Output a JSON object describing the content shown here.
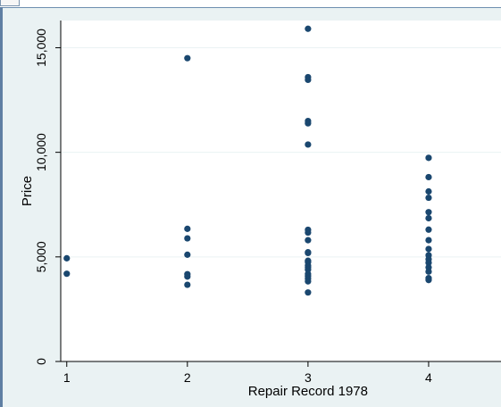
{
  "colors": {
    "outer_background": "#eaf2f3",
    "plot_background": "#ffffff",
    "marker": "#1a476f",
    "grid": "#eaf2f3",
    "axis": "#000000"
  },
  "chart_data": {
    "type": "scatter",
    "title": "",
    "xlabel": "Repair Record 1978",
    "ylabel": "Price",
    "xlim": [
      0.95,
      4.6
    ],
    "ylim": [
      0,
      16300
    ],
    "xticks": [
      1,
      2,
      3,
      4
    ],
    "xtick_labels": [
      "1",
      "2",
      "3",
      "4"
    ],
    "yticks": [
      0,
      5000,
      10000,
      15000
    ],
    "ytick_labels": [
      "0",
      "5,000",
      "10,000",
      "15,000"
    ],
    "grid": true,
    "legend": "none",
    "series": [
      {
        "points": [
          [
            1,
            4934
          ],
          [
            1,
            4195
          ],
          [
            2,
            14500
          ],
          [
            2,
            6342
          ],
          [
            2,
            5886
          ],
          [
            2,
            5104
          ],
          [
            2,
            4172
          ],
          [
            2,
            4060
          ],
          [
            2,
            3667
          ],
          [
            3,
            15906
          ],
          [
            3,
            13594
          ],
          [
            3,
            13466
          ],
          [
            3,
            11497
          ],
          [
            3,
            11385
          ],
          [
            3,
            10372
          ],
          [
            3,
            6295
          ],
          [
            3,
            6165
          ],
          [
            3,
            5798
          ],
          [
            3,
            5222
          ],
          [
            3,
            5189
          ],
          [
            3,
            4816
          ],
          [
            3,
            4749
          ],
          [
            3,
            4589
          ],
          [
            3,
            4504
          ],
          [
            3,
            4389
          ],
          [
            3,
            4187
          ],
          [
            3,
            4082
          ],
          [
            3,
            3955
          ],
          [
            3,
            3829
          ],
          [
            3,
            3299
          ],
          [
            4,
            9735
          ],
          [
            4,
            8814
          ],
          [
            4,
            8129
          ],
          [
            4,
            7827
          ],
          [
            4,
            7140
          ],
          [
            4,
            6850
          ],
          [
            4,
            6303
          ],
          [
            4,
            5799
          ],
          [
            4,
            5379
          ],
          [
            4,
            5079
          ],
          [
            4,
            4890
          ],
          [
            4,
            4723
          ],
          [
            4,
            4499
          ],
          [
            4,
            4296
          ],
          [
            4,
            3984
          ],
          [
            4,
            3895
          ]
        ]
      }
    ]
  }
}
